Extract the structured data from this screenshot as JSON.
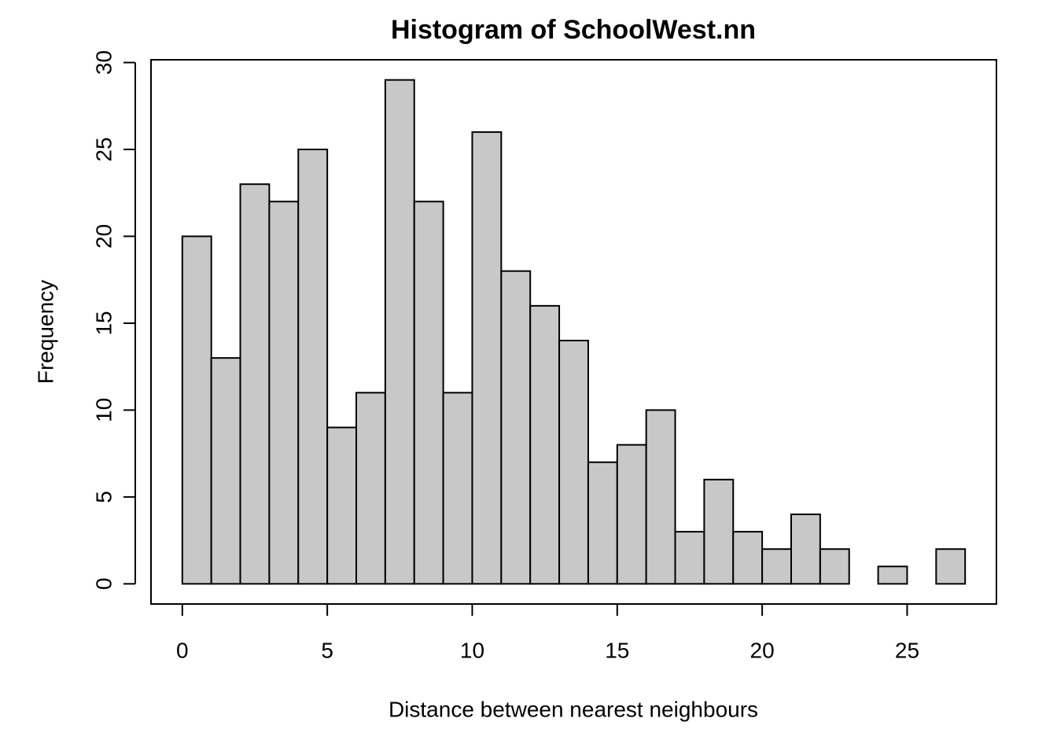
{
  "chart_data": {
    "type": "histogram",
    "title": "Histogram of SchoolWest.nn",
    "x_label": "Distance between nearest neighbours",
    "y_label": "Frequency",
    "bins": [
      0,
      1,
      2,
      3,
      4,
      5,
      6,
      7,
      8,
      9,
      10,
      11,
      12,
      13,
      14,
      15,
      16,
      17,
      18,
      19,
      20,
      21,
      22,
      23,
      24,
      25,
      26,
      27
    ],
    "counts": [
      20,
      13,
      23,
      22,
      25,
      9,
      11,
      29,
      22,
      11,
      26,
      18,
      16,
      14,
      7,
      8,
      10,
      3,
      6,
      3,
      2,
      4,
      2,
      0,
      1,
      0,
      2
    ],
    "color": "#c8c8c8",
    "xlim": [
      -1.08,
      28.08
    ],
    "ylim": [
      -1.16,
      30.16
    ],
    "xticks": [
      0,
      5,
      10,
      15,
      20,
      25
    ],
    "yticks": [
      0,
      5,
      10,
      15,
      20,
      25,
      30
    ]
  }
}
